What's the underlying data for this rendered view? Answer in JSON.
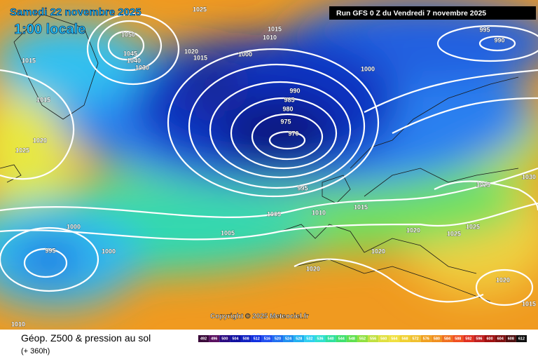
{
  "header": {
    "date": "Samedi 22 novembre 2025",
    "time": "1:00 locale",
    "run": "Run GFS 0 Z du Vendredi 7 novembre 2025"
  },
  "copyright": "Copyright © 2025 Meteociel.fr",
  "footer": {
    "title": "Géop. Z500 & pression au sol",
    "lead": "(+ 360h)"
  },
  "scale_labels": [
    492,
    496,
    500,
    504,
    508,
    512,
    516,
    520,
    524,
    528,
    532,
    536,
    540,
    544,
    548,
    552,
    556,
    560,
    564,
    568,
    572,
    576,
    580,
    584,
    588,
    592,
    596,
    600,
    604,
    608,
    612
  ],
  "isobar_labels": [
    1025,
    1050,
    1045,
    1040,
    1030,
    1020,
    1015,
    1015,
    1010,
    1000,
    995,
    990,
    1000,
    1015,
    1015,
    990,
    985,
    980,
    975,
    970,
    1020,
    1025,
    995,
    1015,
    1010,
    1005,
    1005,
    1000,
    995,
    1000,
    1020,
    1025,
    1025,
    1025,
    1030,
    1020,
    1020,
    1020,
    1015,
    1010
  ]
}
